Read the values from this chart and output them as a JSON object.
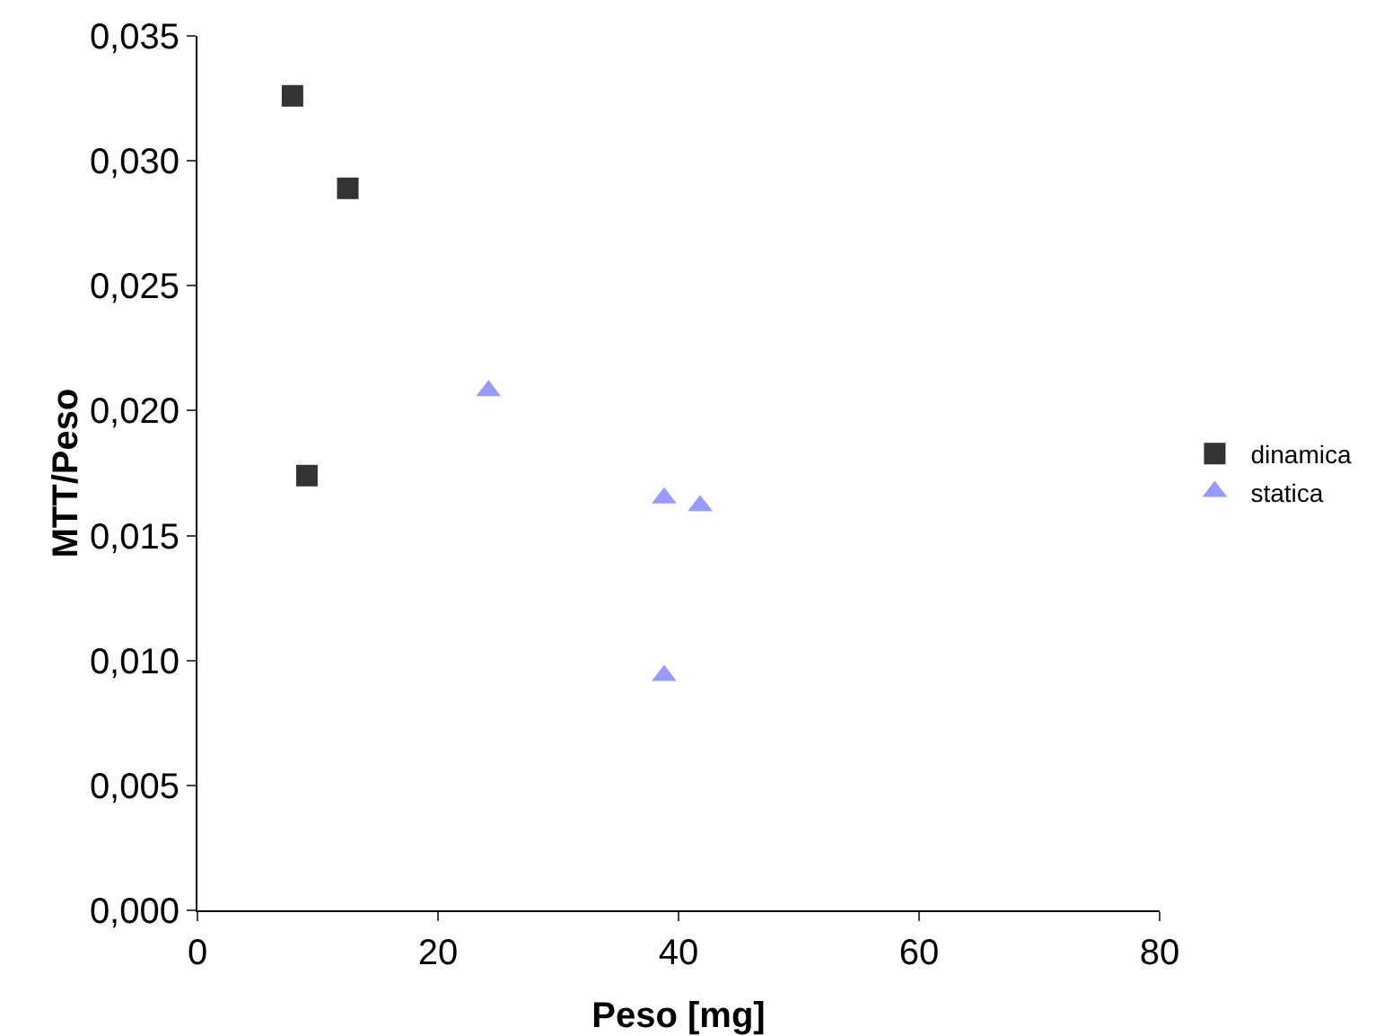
{
  "chart_data": {
    "type": "scatter",
    "xlabel": "Peso [mg]",
    "ylabel": "MTT/Peso",
    "series": [
      {
        "name": "dinamica",
        "color": "#333333",
        "marker": "square",
        "x": [
          7.9,
          12.5,
          9.1
        ],
        "values": [
          0.0326,
          0.0289,
          0.0174
        ]
      },
      {
        "name": "statica",
        "color": "#9999ff",
        "marker": "triangle",
        "x": [
          24.2,
          38.8,
          41.8,
          38.8
        ],
        "values": [
          0.0208,
          0.0165,
          0.0162,
          0.0094
        ]
      }
    ],
    "xlim": [
      0,
      80
    ],
    "xticks": [
      0,
      20,
      40,
      60,
      80
    ],
    "ylim": [
      0,
      0.035
    ],
    "yticks": [
      {
        "value": 0,
        "label": "0,000"
      },
      {
        "value": 0.005,
        "label": "0,005"
      },
      {
        "value": 0.01,
        "label": "0,010"
      },
      {
        "value": 0.015,
        "label": "0,015"
      },
      {
        "value": 0.02,
        "label": "0,020"
      },
      {
        "value": 0.025,
        "label": "0,025"
      },
      {
        "value": 0.03,
        "label": "0,030"
      },
      {
        "value": 0.035,
        "label": "0,035"
      }
    ],
    "grid": false,
    "legend": "right"
  }
}
